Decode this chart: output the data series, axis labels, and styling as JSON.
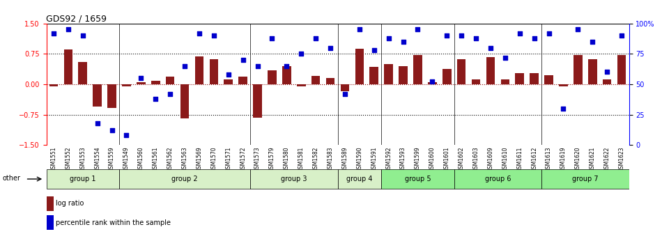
{
  "title": "GDS92 / 1659",
  "samples": [
    "GSM1551",
    "GSM1552",
    "GSM1553",
    "GSM1554",
    "GSM1559",
    "GSM1549",
    "GSM1560",
    "GSM1561",
    "GSM1562",
    "GSM1563",
    "GSM1569",
    "GSM1570",
    "GSM1571",
    "GSM1572",
    "GSM1573",
    "GSM1579",
    "GSM1580",
    "GSM1581",
    "GSM1582",
    "GSM1583",
    "GSM1589",
    "GSM1590",
    "GSM1591",
    "GSM1592",
    "GSM1593",
    "GSM1599",
    "GSM1600",
    "GSM1601",
    "GSM1602",
    "GSM1603",
    "GSM1609",
    "GSM1610",
    "GSM1611",
    "GSM1612",
    "GSM1613",
    "GSM1619",
    "GSM1620",
    "GSM1621",
    "GSM1622",
    "GSM1623"
  ],
  "log_ratio": [
    -0.05,
    0.85,
    0.55,
    -0.55,
    -0.58,
    -0.05,
    0.05,
    0.08,
    0.18,
    -0.85,
    0.68,
    0.62,
    0.12,
    0.18,
    -0.82,
    0.35,
    0.45,
    -0.05,
    0.2,
    0.15,
    -0.18,
    0.88,
    0.42,
    0.5,
    0.45,
    0.72,
    0.05,
    0.38,
    0.62,
    0.12,
    0.67,
    0.12,
    0.28,
    0.27,
    0.22,
    -0.05,
    0.72,
    0.62,
    0.12,
    0.72
  ],
  "percentile": [
    92,
    95,
    90,
    18,
    12,
    8,
    55,
    38,
    42,
    65,
    92,
    90,
    58,
    70,
    65,
    88,
    65,
    75,
    88,
    80,
    42,
    95,
    78,
    88,
    85,
    95,
    52,
    90,
    90,
    88,
    80,
    72,
    92,
    88,
    92,
    30,
    95,
    85,
    60,
    90
  ],
  "groups": [
    {
      "name": "group 1",
      "start": 0,
      "end": 4,
      "color": "#d4f0c0"
    },
    {
      "name": "group 2",
      "start": 5,
      "end": 13,
      "color": "#d4f0c0"
    },
    {
      "name": "group 3",
      "start": 14,
      "end": 19,
      "color": "#d4f0c0"
    },
    {
      "name": "group 4",
      "start": 20,
      "end": 22,
      "color": "#d4f0c0"
    },
    {
      "name": "group 5",
      "start": 23,
      "end": 27,
      "color": "#90ee90"
    },
    {
      "name": "group 6",
      "start": 28,
      "end": 33,
      "color": "#90ee90"
    },
    {
      "name": "group 7",
      "start": 34,
      "end": 39,
      "color": "#90ee90"
    }
  ],
  "bar_color": "#8b1a1a",
  "dot_color": "#0000cc",
  "ylim_left": [
    -1.5,
    1.5
  ],
  "ylim_right": [
    0,
    100
  ],
  "yticks_left": [
    -1.5,
    -0.75,
    0,
    0.75,
    1.5
  ],
  "yticks_right": [
    0,
    25,
    50,
    75,
    100
  ],
  "hlines": [
    0.75,
    0,
    -0.75
  ],
  "background_color": "#ffffff"
}
